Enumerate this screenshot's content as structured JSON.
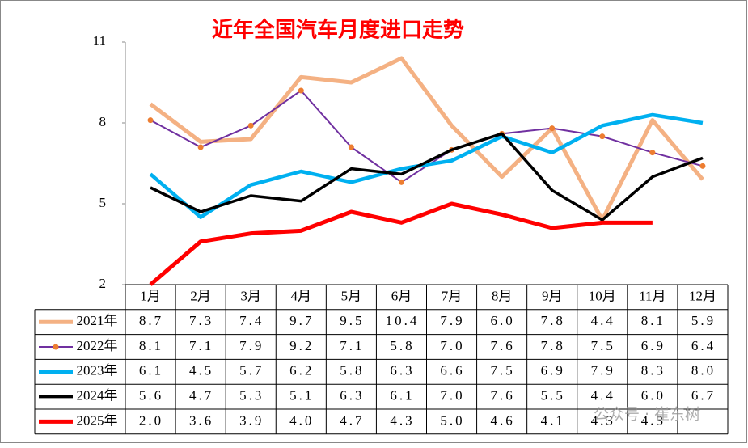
{
  "chart_data": {
    "type": "line",
    "title": "近年全国汽车月度进口走势",
    "categories": [
      "1月",
      "2月",
      "3月",
      "4月",
      "5月",
      "6月",
      "7月",
      "8月",
      "9月",
      "10月",
      "11月",
      "12月"
    ],
    "ylim": [
      2,
      11
    ],
    "yticks": [
      2,
      5,
      8,
      11
    ],
    "series": [
      {
        "name": "2021年",
        "color": "#f4b183",
        "values": [
          8.7,
          7.3,
          7.4,
          9.7,
          9.5,
          10.4,
          7.9,
          6.0,
          7.8,
          4.4,
          8.1,
          5.9
        ],
        "value_labels": [
          "8.7",
          "7.3",
          "7.4",
          "9.7",
          "9.5",
          "10.4",
          "7.9",
          "6.0",
          "7.8",
          "4.4",
          "8.1",
          "5.9"
        ]
      },
      {
        "name": "2022年",
        "color": "#7030a0",
        "marker_color": "#ed7d31",
        "values": [
          8.1,
          7.1,
          7.9,
          9.2,
          7.1,
          5.8,
          7.0,
          7.6,
          7.8,
          7.5,
          6.9,
          6.4
        ],
        "value_labels": [
          "8.1",
          "7.1",
          "7.9",
          "9.2",
          "7.1",
          "5.8",
          "7.0",
          "7.6",
          "7.8",
          "7.5",
          "6.9",
          "6.4"
        ]
      },
      {
        "name": "2023年",
        "color": "#00b0f0",
        "values": [
          6.1,
          4.5,
          5.7,
          6.2,
          5.8,
          6.3,
          6.6,
          7.5,
          6.9,
          7.9,
          8.3,
          8.0
        ],
        "value_labels": [
          "6.1",
          "4.5",
          "5.7",
          "6.2",
          "5.8",
          "6.3",
          "6.6",
          "7.5",
          "6.9",
          "7.9",
          "8.3",
          "8.0"
        ]
      },
      {
        "name": "2024年",
        "color": "#000000",
        "values": [
          5.6,
          4.7,
          5.3,
          5.1,
          6.3,
          6.1,
          7.0,
          7.6,
          5.5,
          4.4,
          6.0,
          6.7
        ],
        "value_labels": [
          "5.6",
          "4.7",
          "5.3",
          "5.1",
          "6.3",
          "6.1",
          "7.0",
          "7.6",
          "5.5",
          "4.4",
          "6.0",
          "6.7"
        ]
      },
      {
        "name": "2025年",
        "color": "#ff0000",
        "values": [
          2.0,
          3.6,
          3.9,
          4.0,
          4.7,
          4.3,
          5.0,
          4.6,
          4.1,
          4.3,
          4.3,
          null
        ],
        "value_labels": [
          "2.0",
          "3.6",
          "3.9",
          "4.0",
          "4.7",
          "4.3",
          "5.0",
          "4.6",
          "4.1",
          "4.3",
          "4.3",
          null
        ]
      }
    ],
    "watermark": "公众号 · 崔东树"
  }
}
